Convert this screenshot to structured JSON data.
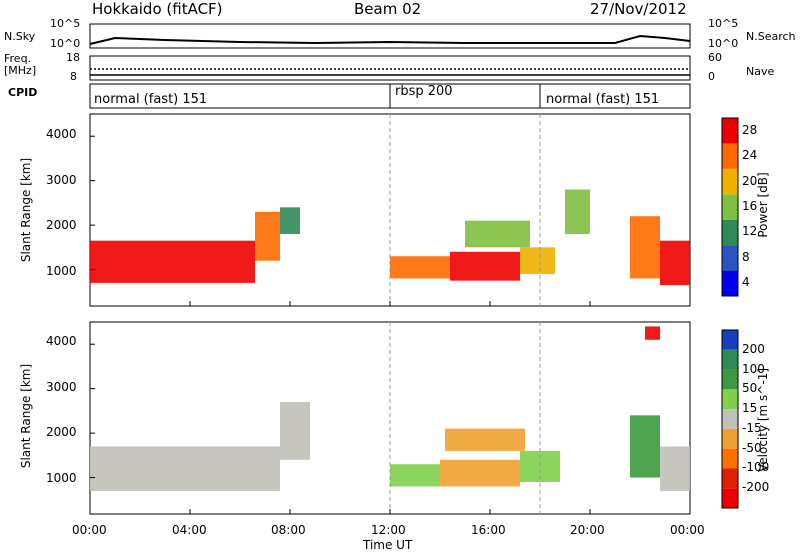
{
  "header": {
    "station": "Hokkaido (fitACF)",
    "beam": "Beam 02",
    "date": "27/Nov/2012"
  },
  "top_panels": {
    "nsky_label": "N.Sky",
    "nsky_ticks": [
      "10^5",
      "10^0"
    ],
    "nsearch_label": "N.Search",
    "nsearch_ticks": [
      "10^5",
      "10^0"
    ],
    "freq_label_1": "Freq.",
    "freq_label_2": "[MHz]",
    "freq_ticks": [
      "18",
      "8"
    ],
    "nave_label": "Nave",
    "nave_ticks": [
      "60",
      "0"
    ],
    "cpid_label": "CPID",
    "cpid_segments": [
      {
        "label": "normal (fast) 151",
        "start_hr": 0,
        "end_hr": 12
      },
      {
        "label": "rbsp 200",
        "start_hr": 12,
        "end_hr": 18
      },
      {
        "label": "normal (fast) 151",
        "start_hr": 18,
        "end_hr": 24
      }
    ]
  },
  "chart_data": [
    {
      "type": "heatmap",
      "title": "",
      "xlabel": "Time UT",
      "ylabel": "Slant Range [km]",
      "xlim": [
        "00:00",
        "24:00"
      ],
      "ylim": [
        180,
        4500
      ],
      "yticks": [
        "1000",
        "2000",
        "3000",
        "4000"
      ],
      "colorbar_label": "Power [dB]",
      "colorbar_ticks": [
        "4",
        "8",
        "12",
        "16",
        "20",
        "24",
        "28"
      ],
      "colors": [
        "#0000ee",
        "#2a55c0",
        "#2e8b57",
        "#7fbf3f",
        "#f0b000",
        "#ff6a00",
        "#ee0000"
      ],
      "regions": [
        {
          "t0": 0.0,
          "t1": 6.6,
          "r0": 700,
          "r1": 1650,
          "level": 6
        },
        {
          "t0": 6.6,
          "t1": 7.6,
          "r0": 1200,
          "r1": 2300,
          "level": 5
        },
        {
          "t0": 7.6,
          "t1": 8.4,
          "r0": 1800,
          "r1": 2400,
          "level": 2
        },
        {
          "t0": 12.0,
          "t1": 14.4,
          "r0": 800,
          "r1": 1300,
          "level": 5
        },
        {
          "t0": 14.4,
          "t1": 17.2,
          "r0": 750,
          "r1": 1400,
          "level": 6
        },
        {
          "t0": 15.0,
          "t1": 17.6,
          "r0": 1500,
          "r1": 2100,
          "level": 3
        },
        {
          "t0": 17.2,
          "t1": 18.6,
          "r0": 900,
          "r1": 1500,
          "level": 4
        },
        {
          "t0": 19.0,
          "t1": 20.0,
          "r0": 1800,
          "r1": 2800,
          "level": 3
        },
        {
          "t0": 21.6,
          "t1": 22.8,
          "r0": 800,
          "r1": 2200,
          "level": 5
        },
        {
          "t0": 22.8,
          "t1": 24.0,
          "r0": 650,
          "r1": 1650,
          "level": 6
        }
      ]
    },
    {
      "type": "heatmap",
      "title": "",
      "xlabel": "Time UT",
      "ylabel": "Slant Range [km]",
      "xlim": [
        "00:00",
        "24:00"
      ],
      "ylim": [
        180,
        4500
      ],
      "yticks": [
        "1000",
        "2000",
        "3000",
        "4000"
      ],
      "xticks": [
        "00:00",
        "04:00",
        "08:00",
        "12:00",
        "16:00",
        "20:00",
        "00:00"
      ],
      "colorbar_label": "Velocity [m s^-1]",
      "colorbar_ticks": [
        "200",
        "100",
        "50",
        "15",
        "-15",
        "-50",
        "-100",
        "-200"
      ],
      "colors": [
        "#1a3cc0",
        "#2e8b57",
        "#3c9a3c",
        "#7fd04a",
        "#c0c0b8",
        "#f0a030",
        "#ff7000",
        "#e02000",
        "#ee0000"
      ],
      "regions": [
        {
          "t0": 0.0,
          "t1": 7.6,
          "r0": 700,
          "r1": 1700,
          "level": 4
        },
        {
          "t0": 7.6,
          "t1": 8.8,
          "r0": 1400,
          "r1": 2700,
          "level": 4
        },
        {
          "t0": 12.0,
          "t1": 14.0,
          "r0": 800,
          "r1": 1300,
          "level": 3
        },
        {
          "t0": 14.0,
          "t1": 17.2,
          "r0": 800,
          "r1": 1400,
          "level": 5
        },
        {
          "t0": 14.2,
          "t1": 17.4,
          "r0": 1600,
          "r1": 2100,
          "level": 5
        },
        {
          "t0": 17.2,
          "t1": 18.8,
          "r0": 900,
          "r1": 1600,
          "level": 3
        },
        {
          "t0": 21.6,
          "t1": 22.8,
          "r0": 1000,
          "r1": 2400,
          "level": 2
        },
        {
          "t0": 22.8,
          "t1": 24.0,
          "r0": 700,
          "r1": 1700,
          "level": 4
        },
        {
          "t0": 22.2,
          "t1": 22.8,
          "r0": 4100,
          "r1": 4400,
          "level": 8
        }
      ]
    }
  ]
}
